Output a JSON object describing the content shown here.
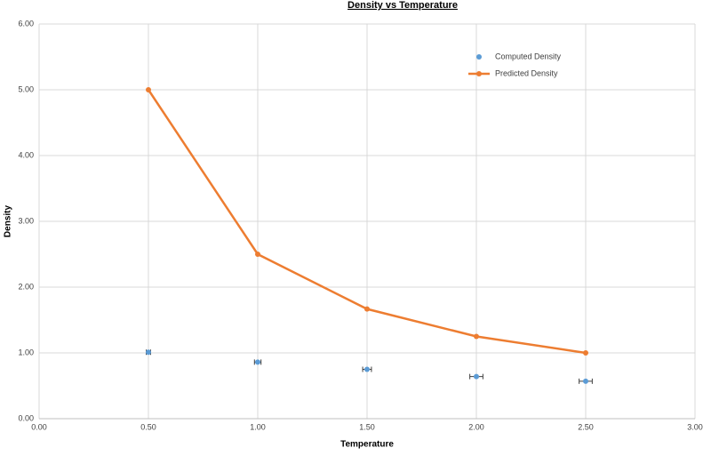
{
  "chart_data": {
    "type": "scatter",
    "title": "Density vs Temperature",
    "x_label": "Temperature",
    "y_label": "Density",
    "xlim": [
      0,
      3
    ],
    "ylim": [
      0,
      6
    ],
    "xticks": [
      {
        "value": 0,
        "label": "0.00"
      },
      {
        "value": 0.5,
        "label": "0.50"
      },
      {
        "value": 1,
        "label": "1.00"
      },
      {
        "value": 1.5,
        "label": "1.50"
      },
      {
        "value": 2,
        "label": "2.00"
      },
      {
        "value": 2.5,
        "label": "2.50"
      },
      {
        "value": 3,
        "label": "3.00"
      }
    ],
    "yticks": [
      {
        "value": 0,
        "label": "0.00"
      },
      {
        "value": 1,
        "label": "1.00"
      },
      {
        "value": 2,
        "label": "2.00"
      },
      {
        "value": 3,
        "label": "3.00"
      },
      {
        "value": 4,
        "label": "4.00"
      },
      {
        "value": 5,
        "label": "5.00"
      },
      {
        "value": 6,
        "label": "6.00"
      }
    ],
    "grid": true,
    "legend": "upper right",
    "series": [
      {
        "name": "Computed Density",
        "type": "scatter",
        "color": "#5b9bd5",
        "x": [
          0.5,
          1.0,
          1.5,
          2.0,
          2.5
        ],
        "values": [
          1.01,
          0.86,
          0.75,
          0.64,
          0.57
        ],
        "x_errors": [
          0.01,
          0.015,
          0.02,
          0.03,
          0.03
        ]
      },
      {
        "name": "Predicted Density",
        "type": "line",
        "color": "#ed7d31",
        "x": [
          0.5,
          1.0,
          1.5,
          2.0,
          2.5
        ],
        "values": [
          5.0,
          2.5,
          1.667,
          1.25,
          1.0
        ]
      }
    ]
  }
}
